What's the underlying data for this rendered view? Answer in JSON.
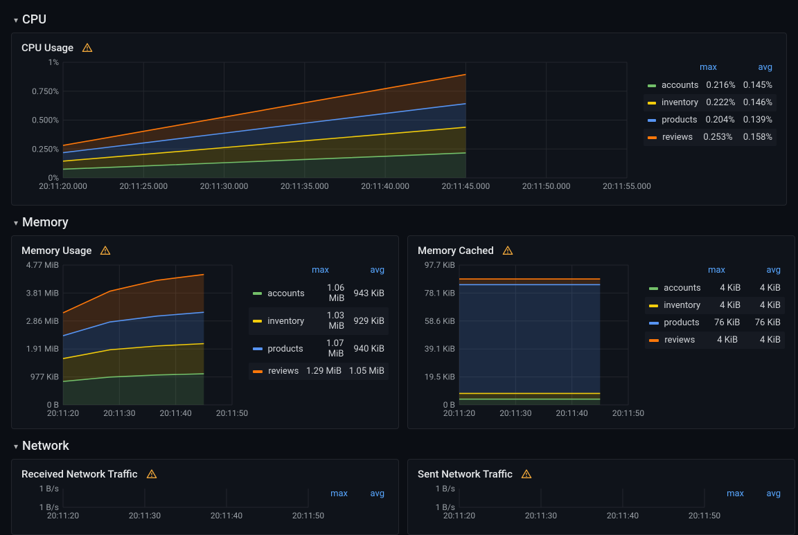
{
  "colors": {
    "accounts": "#73bf69",
    "inventory": "#f2cc0c",
    "products": "#5794f2",
    "reviews": "#ff780a",
    "bg": "#0b0e14",
    "panel": "#0f131a",
    "grid": "#23262d",
    "text": "#d8d9da",
    "accent_link": "#58a6ff",
    "warn": "#f2a93b"
  },
  "legend_headers": {
    "max": "max",
    "avg": "avg"
  },
  "sections": {
    "cpu": {
      "title": "CPU"
    },
    "memory": {
      "title": "Memory"
    },
    "network": {
      "title": "Network"
    }
  },
  "panels": {
    "cpu_usage": {
      "title": "CPU Usage",
      "type": "area-line",
      "x_ticks": [
        "20:11:20.000",
        "20:11:25.000",
        "20:11:30.000",
        "20:11:35.000",
        "20:11:40.000",
        "20:11:45.000",
        "20:11:50.000",
        "20:11:55.000"
      ],
      "y_ticks": [
        "0%",
        "0.250%",
        "0.500%",
        "0.750%",
        "1%"
      ],
      "ylim": [
        0,
        1.0
      ],
      "x_major_count": 8,
      "data_x_span": [
        0,
        5
      ],
      "series": [
        {
          "key": "accounts",
          "label": "accounts",
          "max": "0.216%",
          "avg": "0.145%",
          "values": [
            0.075,
            0.103,
            0.131,
            0.159,
            0.187,
            0.216
          ]
        },
        {
          "key": "inventory",
          "label": "inventory",
          "max": "0.222%",
          "avg": "0.146%",
          "values": [
            0.07,
            0.1,
            0.131,
            0.162,
            0.192,
            0.222
          ]
        },
        {
          "key": "products",
          "label": "products",
          "max": "0.204%",
          "avg": "0.139%",
          "values": [
            0.073,
            0.099,
            0.125,
            0.152,
            0.178,
            0.204
          ]
        },
        {
          "key": "reviews",
          "label": "reviews",
          "max": "0.253%",
          "avg": "0.158%",
          "values": [
            0.063,
            0.101,
            0.139,
            0.177,
            0.215,
            0.253
          ]
        }
      ],
      "stacked": true
    },
    "mem_usage": {
      "title": "Memory Usage",
      "type": "area-line",
      "x_ticks": [
        "20:11:20",
        "20:11:30",
        "20:11:40",
        "20:11:50"
      ],
      "y_ticks": [
        "0 B",
        "977 KiB",
        "1.91 MiB",
        "2.86 MiB",
        "3.81 MiB",
        "4.77 MiB"
      ],
      "ylim": [
        0,
        4.77
      ],
      "data_x_span": [
        0,
        2.5
      ],
      "series": [
        {
          "key": "accounts",
          "label": "accounts",
          "max": "1.06 MiB",
          "avg": "943 KiB",
          "values": [
            0.8,
            0.95,
            1.02,
            1.06
          ]
        },
        {
          "key": "inventory",
          "label": "inventory",
          "max": "1.03 MiB",
          "avg": "929 KiB",
          "values": [
            0.78,
            0.93,
            0.99,
            1.03
          ]
        },
        {
          "key": "products",
          "label": "products",
          "max": "1.07 MiB",
          "avg": "940 KiB",
          "values": [
            0.78,
            0.95,
            1.02,
            1.07
          ]
        },
        {
          "key": "reviews",
          "label": "reviews",
          "max": "1.29 MiB",
          "avg": "1.05 MiB",
          "values": [
            0.78,
            1.05,
            1.22,
            1.29
          ]
        }
      ],
      "stacked": true
    },
    "mem_cached": {
      "title": "Memory Cached",
      "type": "area-line",
      "x_ticks": [
        "20:11:20",
        "20:11:30",
        "20:11:40",
        "20:11:50"
      ],
      "y_ticks": [
        "0 B",
        "19.5 KiB",
        "39.1 KiB",
        "58.6 KiB",
        "78.1 KiB",
        "97.7 KiB"
      ],
      "ylim": [
        0,
        97.7
      ],
      "data_x_span": [
        0,
        2.5
      ],
      "series": [
        {
          "key": "accounts",
          "label": "accounts",
          "max": "4 KiB",
          "avg": "4 KiB",
          "values": [
            4,
            4,
            4,
            4
          ]
        },
        {
          "key": "inventory",
          "label": "inventory",
          "max": "4 KiB",
          "avg": "4 KiB",
          "values": [
            4,
            4,
            4,
            4
          ]
        },
        {
          "key": "products",
          "label": "products",
          "max": "76 KiB",
          "avg": "76 KiB",
          "values": [
            76,
            76,
            76,
            76
          ]
        },
        {
          "key": "reviews",
          "label": "reviews",
          "max": "4 KiB",
          "avg": "4 KiB",
          "values": [
            4,
            4,
            4,
            4
          ]
        }
      ],
      "stacked": true
    },
    "net_rx": {
      "title": "Received Network Traffic",
      "type": "area-line",
      "x_ticks": [
        "20:11:20",
        "20:11:30",
        "20:11:40",
        "20:11:50"
      ],
      "y_ticks": [
        "1 B/s"
      ],
      "ylim": [
        0,
        1
      ],
      "data_x_span": [
        0,
        2.5
      ],
      "series": []
    },
    "net_tx": {
      "title": "Sent Network Traffic",
      "type": "area-line",
      "x_ticks": [
        "20:11:20",
        "20:11:30",
        "20:11:40",
        "20:11:50"
      ],
      "y_ticks": [
        "1 B/s"
      ],
      "ylim": [
        0,
        1
      ],
      "data_x_span": [
        0,
        2.5
      ],
      "series": []
    }
  }
}
